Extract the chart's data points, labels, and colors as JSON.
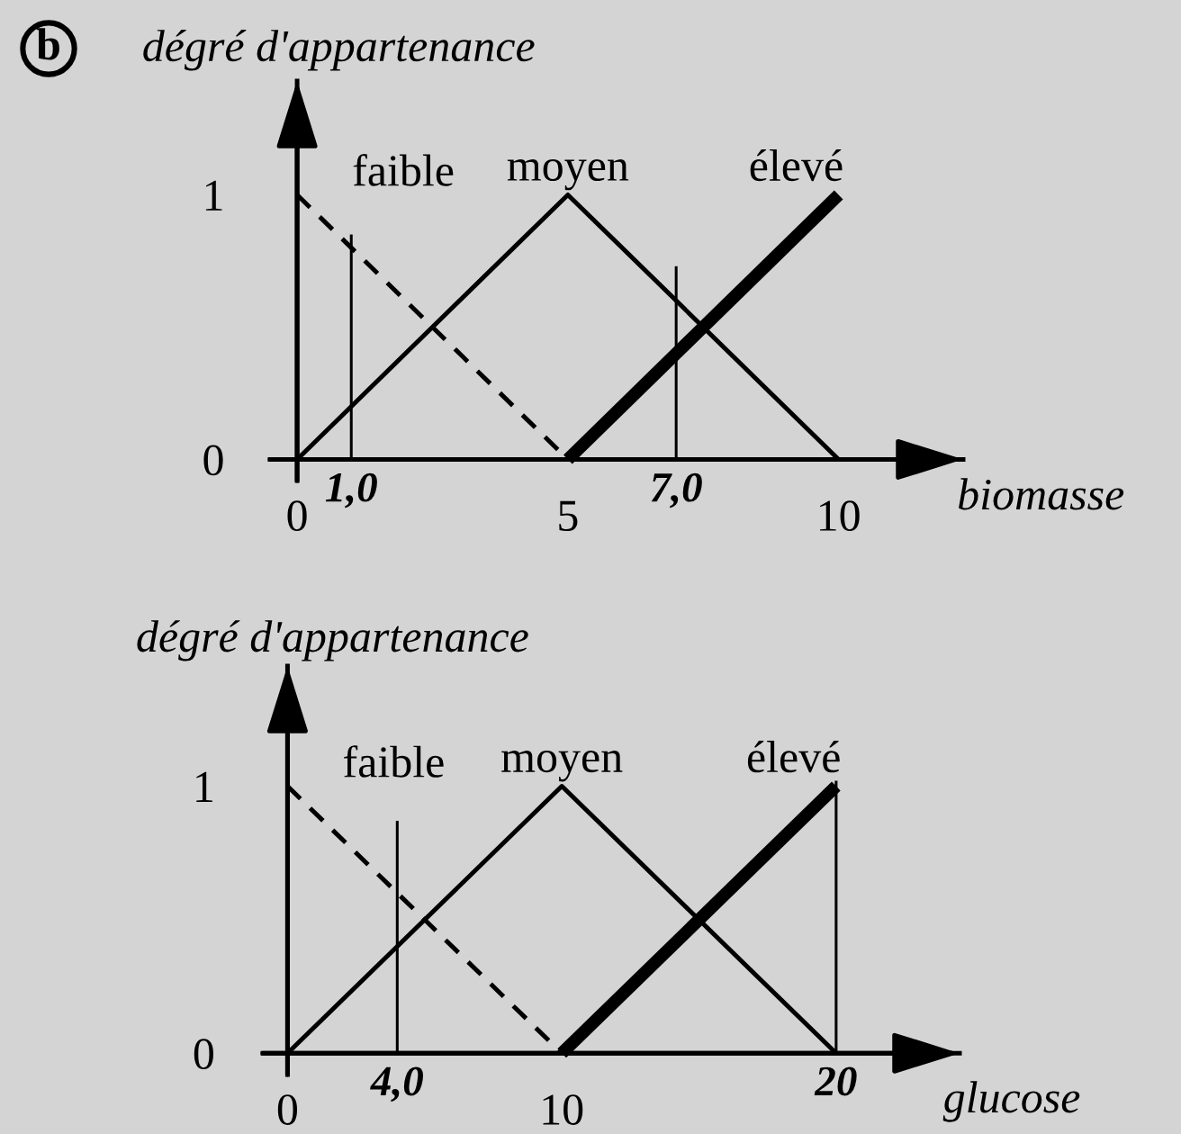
{
  "chart_data": [
    {
      "type": "line",
      "xlabel": "biomasse",
      "ylabel": "dégré d'appartenance",
      "xlim": [
        -0.5,
        12.3
      ],
      "ylim": [
        -0.08,
        1.43
      ],
      "xticks": [
        0,
        5,
        10
      ],
      "yticks": [
        0,
        1
      ],
      "grid": false,
      "legend": false,
      "marker": "none",
      "series": [
        {
          "name": "faible",
          "color": "#000000",
          "line_style": "dashed",
          "x": [
            0,
            5
          ],
          "values": [
            1,
            0
          ]
        },
        {
          "name": "moyen",
          "color": "#000000",
          "line_style": "solid",
          "x": [
            0,
            5,
            10
          ],
          "values": [
            0,
            1,
            0
          ]
        },
        {
          "name": "élevé",
          "color": "#000000",
          "line_style": "solid",
          "x": [
            5,
            10
          ],
          "values": [
            0,
            1
          ]
        },
        {
          "color": "#000000",
          "line_style": "solid",
          "x": [
            1,
            1
          ],
          "values": [
            0,
            0.85
          ]
        },
        {
          "color": "#000000",
          "line_style": "solid",
          "x": [
            7,
            7
          ],
          "values": [
            0,
            0.73
          ]
        }
      ],
      "annotations": [
        "b",
        {
          "text": "1,0",
          "x": 1,
          "y": 0
        },
        {
          "text": "7,0",
          "x": 7,
          "y": 0
        }
      ]
    },
    {
      "type": "line",
      "xlabel": "glucose",
      "ylabel": "dégré d'appartenance",
      "xlim": [
        -0.9,
        24.5
      ],
      "ylim": [
        -0.08,
        1.45
      ],
      "xticks": [
        0,
        10
      ],
      "yticks": [
        0,
        1
      ],
      "grid": false,
      "legend": false,
      "marker": "none",
      "series": [
        {
          "name": "faible",
          "color": "#000000",
          "line_style": "dashed",
          "x": [
            0,
            10
          ],
          "values": [
            1,
            0
          ]
        },
        {
          "name": "moyen",
          "color": "#000000",
          "line_style": "solid",
          "x": [
            0,
            10,
            20
          ],
          "values": [
            0,
            1,
            0
          ]
        },
        {
          "name": "élevé",
          "color": "#000000",
          "line_style": "solid",
          "x": [
            10,
            20
          ],
          "values": [
            0,
            1
          ]
        },
        {
          "color": "#000000",
          "line_style": "solid",
          "x": [
            4,
            4
          ],
          "values": [
            0,
            0.87
          ]
        },
        {
          "color": "#000000",
          "line_style": "solid",
          "x": [
            20,
            20
          ],
          "values": [
            0,
            1.02
          ]
        }
      ],
      "annotations": [
        {
          "text": "4,0",
          "x": 4,
          "y": 0
        },
        {
          "text": "20",
          "x": 20,
          "y": 0
        }
      ]
    }
  ]
}
